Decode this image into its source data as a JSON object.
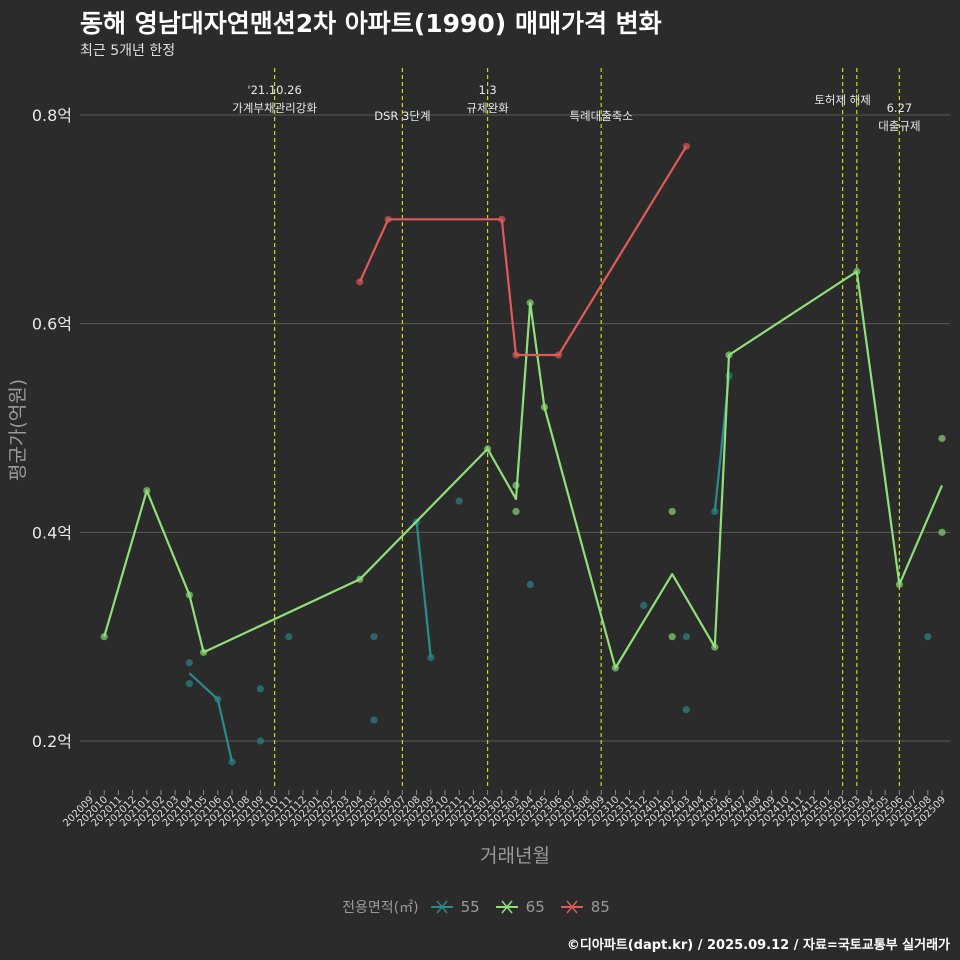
{
  "title": "동해 영남대자연맨션2차 아파트(1990) 매매가격 변화",
  "subtitle": "최근 5개년 한정",
  "caption": "©디아파트(dapt.kr) / 2025.09.12 / 자료=국토교통부 실거래가",
  "legend": {
    "title": "전용면적(㎡)",
    "items": [
      {
        "label": "55",
        "color": "#2a8a8c"
      },
      {
        "label": "65",
        "color": "#8fe07a"
      },
      {
        "label": "85",
        "color": "#e05a5a"
      }
    ]
  },
  "chart_data": {
    "type": "line",
    "xlabel": "거래년월",
    "ylabel": "평균가(억원)",
    "ylim": [
      0.15,
      0.85
    ],
    "y_ticks": [
      {
        "value": 0.2,
        "label": "0.2억"
      },
      {
        "value": 0.4,
        "label": "0.4억"
      },
      {
        "value": 0.6,
        "label": "0.6억"
      },
      {
        "value": 0.8,
        "label": "0.8억"
      }
    ],
    "grid": true,
    "x_categories": [
      "202009",
      "202010",
      "202011",
      "202012",
      "202101",
      "202102",
      "202103",
      "202104",
      "202105",
      "202106",
      "202107",
      "202108",
      "202109",
      "202110",
      "202111",
      "202112",
      "202201",
      "202202",
      "202203",
      "202204",
      "202205",
      "202206",
      "202207",
      "202208",
      "202209",
      "202210",
      "202211",
      "202212",
      "202301",
      "202302",
      "202303",
      "202304",
      "202305",
      "202306",
      "202307",
      "202308",
      "202309",
      "202310",
      "202311",
      "202312",
      "202401",
      "202402",
      "202403",
      "202404",
      "202405",
      "202406",
      "202407",
      "202408",
      "202409",
      "202410",
      "202411",
      "202412",
      "202501",
      "202502",
      "202503",
      "202504",
      "202505",
      "202506",
      "202507",
      "202508",
      "202509"
    ],
    "events": [
      {
        "x": "202110",
        "label_lines": [
          "'21.10.26",
          "가계부채관리강화"
        ],
        "label_row": 0
      },
      {
        "x": "202207",
        "label_lines": [
          "DSR 3단계"
        ],
        "label_row": 1
      },
      {
        "x": "202301",
        "label_lines": [
          "1.3",
          "규제완화"
        ],
        "label_row": 0
      },
      {
        "x": "202309",
        "label_lines": [
          "특례대출축소"
        ],
        "label_row": 1
      },
      {
        "x": "202502",
        "label_lines": [
          "토허제 해제"
        ],
        "label_row": 0
      },
      {
        "x": "202503",
        "label_lines": [],
        "label_row": 0
      },
      {
        "x": "202506",
        "label_lines": [
          "6.27",
          "대출규제"
        ],
        "label_row": 1
      }
    ],
    "series": [
      {
        "name": "55",
        "color": "#2a8a8c",
        "line": [
          {
            "x": "202104",
            "y": 0.265
          },
          {
            "x": "202106",
            "y": 0.24
          },
          {
            "x": "202107",
            "y": 0.18
          }
        ],
        "line2": [
          {
            "x": "202208",
            "y": 0.41
          },
          {
            "x": "202209",
            "y": 0.28
          }
        ],
        "line3": [
          {
            "x": "202405",
            "y": 0.42
          },
          {
            "x": "202406",
            "y": 0.55
          }
        ],
        "points": [
          {
            "x": "202104",
            "y": 0.275
          },
          {
            "x": "202104",
            "y": 0.255
          },
          {
            "x": "202106",
            "y": 0.24
          },
          {
            "x": "202107",
            "y": 0.18
          },
          {
            "x": "202109",
            "y": 0.25
          },
          {
            "x": "202109",
            "y": 0.2
          },
          {
            "x": "202111",
            "y": 0.3
          },
          {
            "x": "202205",
            "y": 0.3
          },
          {
            "x": "202205",
            "y": 0.22
          },
          {
            "x": "202208",
            "y": 0.41
          },
          {
            "x": "202209",
            "y": 0.28
          },
          {
            "x": "202211",
            "y": 0.43
          },
          {
            "x": "202304",
            "y": 0.35
          },
          {
            "x": "202312",
            "y": 0.33
          },
          {
            "x": "202403",
            "y": 0.3
          },
          {
            "x": "202403",
            "y": 0.23
          },
          {
            "x": "202405",
            "y": 0.42
          },
          {
            "x": "202406",
            "y": 0.55
          },
          {
            "x": "202508",
            "y": 0.3
          }
        ]
      },
      {
        "name": "65",
        "color": "#8fe07a",
        "line": [
          {
            "x": "202010",
            "y": 0.3
          },
          {
            "x": "202101",
            "y": 0.44
          },
          {
            "x": "202104",
            "y": 0.34
          },
          {
            "x": "202105",
            "y": 0.285
          },
          {
            "x": "202204",
            "y": 0.355
          },
          {
            "x": "202301",
            "y": 0.48
          },
          {
            "x": "202303",
            "y": 0.432
          },
          {
            "x": "202304",
            "y": 0.62
          },
          {
            "x": "202305",
            "y": 0.52
          },
          {
            "x": "202310",
            "y": 0.27
          },
          {
            "x": "202402",
            "y": 0.36
          },
          {
            "x": "202405",
            "y": 0.29
          },
          {
            "x": "202406",
            "y": 0.57
          },
          {
            "x": "202503",
            "y": 0.65
          },
          {
            "x": "202506",
            "y": 0.35
          },
          {
            "x": "202509",
            "y": 0.445
          }
        ],
        "points": [
          {
            "x": "202010",
            "y": 0.3
          },
          {
            "x": "202101",
            "y": 0.44
          },
          {
            "x": "202104",
            "y": 0.34
          },
          {
            "x": "202105",
            "y": 0.285
          },
          {
            "x": "202204",
            "y": 0.355
          },
          {
            "x": "202301",
            "y": 0.48
          },
          {
            "x": "202303",
            "y": 0.445
          },
          {
            "x": "202303",
            "y": 0.42
          },
          {
            "x": "202304",
            "y": 0.62
          },
          {
            "x": "202305",
            "y": 0.52
          },
          {
            "x": "202310",
            "y": 0.27
          },
          {
            "x": "202402",
            "y": 0.42
          },
          {
            "x": "202402",
            "y": 0.3
          },
          {
            "x": "202405",
            "y": 0.29
          },
          {
            "x": "202406",
            "y": 0.57
          },
          {
            "x": "202503",
            "y": 0.65
          },
          {
            "x": "202506",
            "y": 0.35
          },
          {
            "x": "202509",
            "y": 0.49
          },
          {
            "x": "202509",
            "y": 0.4
          }
        ]
      },
      {
        "name": "85",
        "color": "#e05a5a",
        "line": [
          {
            "x": "202204",
            "y": 0.64
          },
          {
            "x": "202206",
            "y": 0.7
          },
          {
            "x": "202302",
            "y": 0.7
          },
          {
            "x": "202303",
            "y": 0.57
          },
          {
            "x": "202306",
            "y": 0.57
          },
          {
            "x": "202403",
            "y": 0.77
          }
        ],
        "points": [
          {
            "x": "202204",
            "y": 0.64
          },
          {
            "x": "202206",
            "y": 0.7
          },
          {
            "x": "202302",
            "y": 0.7
          },
          {
            "x": "202303",
            "y": 0.57
          },
          {
            "x": "202306",
            "y": 0.57
          },
          {
            "x": "202403",
            "y": 0.77
          }
        ]
      }
    ]
  }
}
